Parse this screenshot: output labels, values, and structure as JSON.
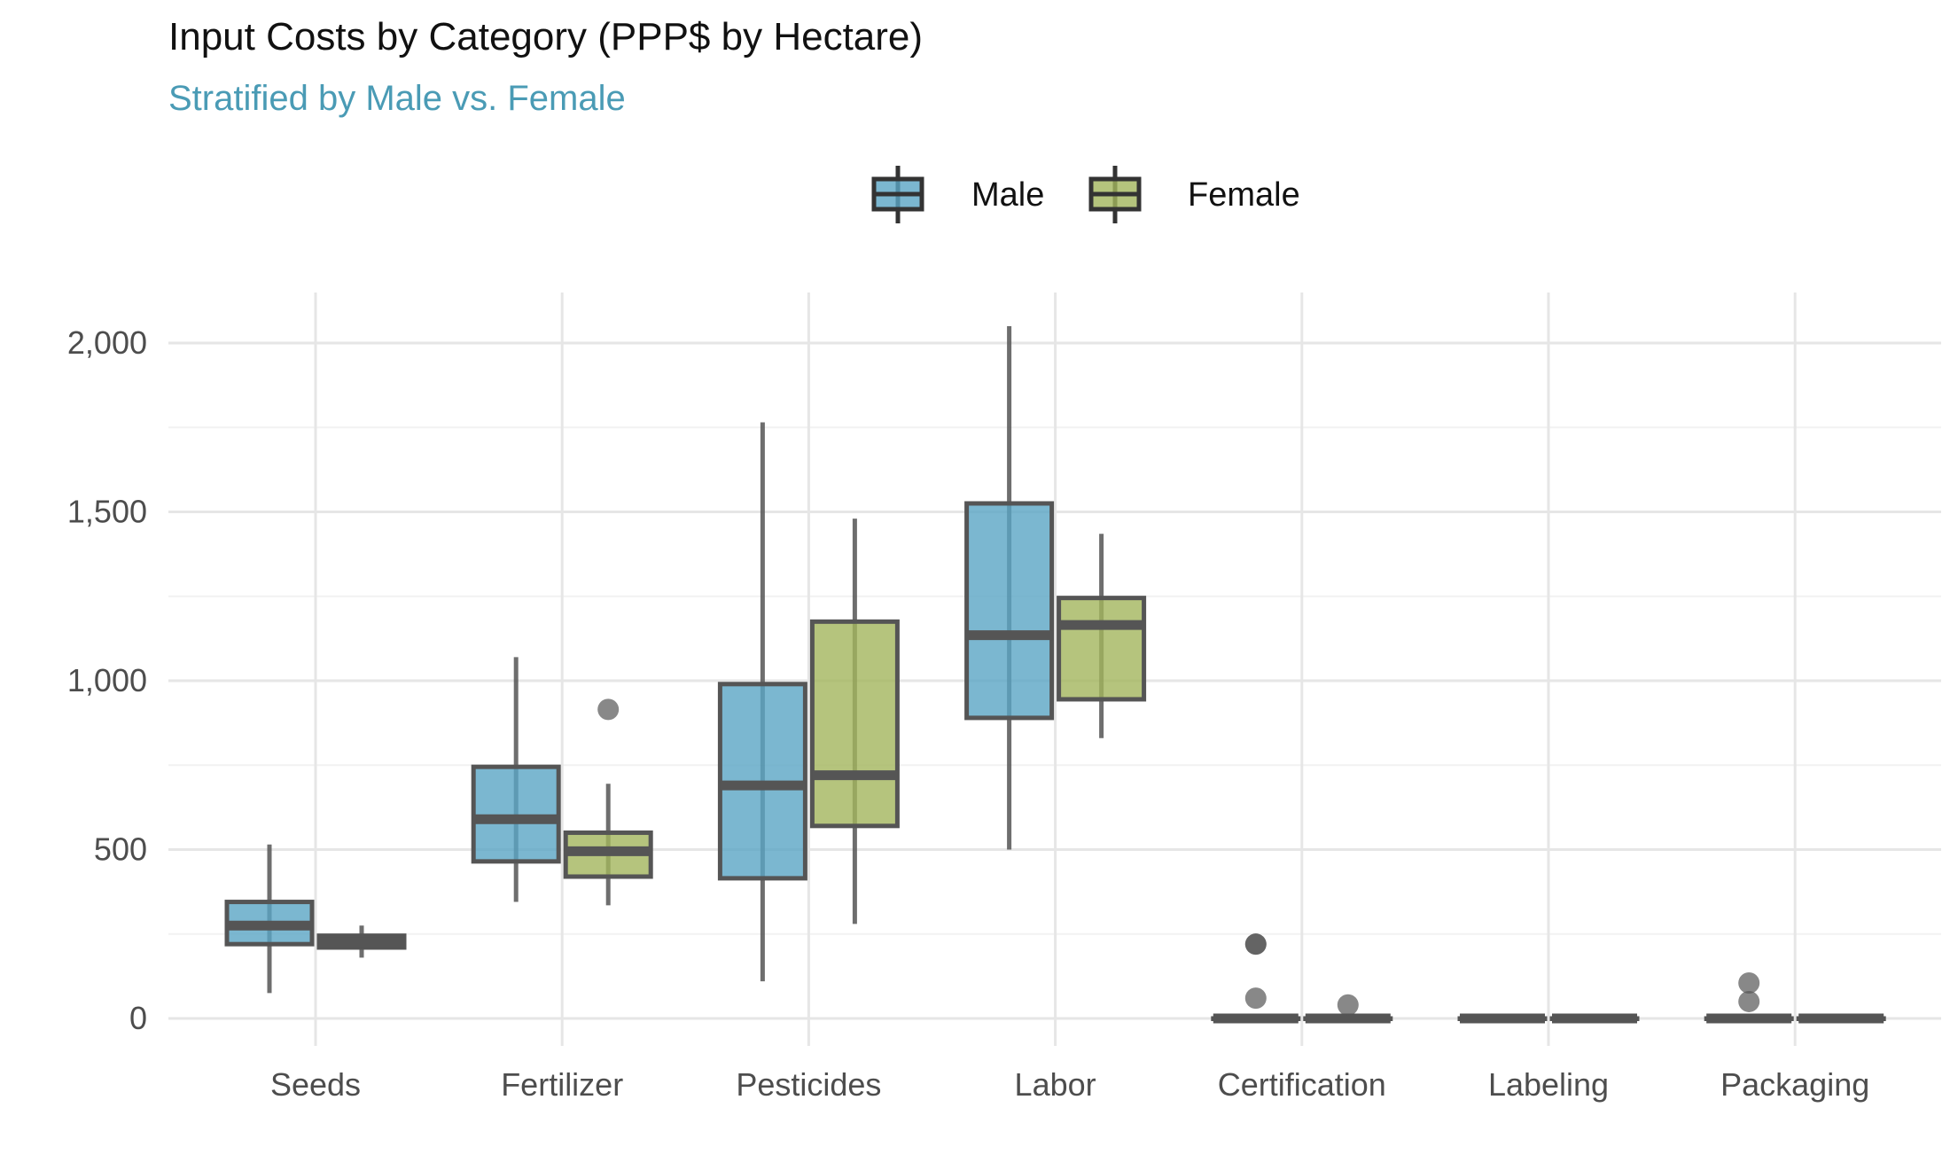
{
  "chart_data": {
    "type": "boxplot",
    "title": "Input Costs by Category (PPP$ by Hectare)",
    "subtitle": "Stratified by Male vs. Female",
    "xlabel": "",
    "ylabel": "",
    "ylim": [
      -100,
      2150
    ],
    "yticks": [
      0,
      500,
      1000,
      1500,
      2000
    ],
    "ytick_labels": [
      "0",
      "500",
      "1,000",
      "1,500",
      "2,000"
    ],
    "grid": true,
    "legend_position": "top",
    "categories": [
      "Seeds",
      "Fertilizer",
      "Pesticides",
      "Labor",
      "Certification",
      "Labeling",
      "Packaging"
    ],
    "series": [
      {
        "name": "Male",
        "color": "#5aa5c4",
        "boxes": [
          {
            "min": 75,
            "q1": 220,
            "median": 275,
            "q3": 345,
            "max": 515,
            "outliers": []
          },
          {
            "min": 345,
            "q1": 465,
            "median": 590,
            "q3": 745,
            "max": 1070,
            "outliers": []
          },
          {
            "min": 110,
            "q1": 415,
            "median": 690,
            "q3": 990,
            "max": 1765,
            "outliers": []
          },
          {
            "min": 500,
            "q1": 890,
            "median": 1135,
            "q3": 1525,
            "max": 2050,
            "outliers": []
          },
          {
            "min": 0,
            "q1": 0,
            "median": 0,
            "q3": 0,
            "max": 0,
            "outliers": [
              60,
              220,
              220
            ]
          },
          {
            "min": 0,
            "q1": 0,
            "median": 0,
            "q3": 0,
            "max": 0,
            "outliers": []
          },
          {
            "min": 0,
            "q1": 0,
            "median": 0,
            "q3": 0,
            "max": 0,
            "outliers": [
              50,
              105
            ]
          }
        ]
      },
      {
        "name": "Female",
        "color": "#a3b55c",
        "boxes": [
          {
            "min": 180,
            "q1": 210,
            "median": 225,
            "q3": 245,
            "max": 275,
            "outliers": []
          },
          {
            "min": 335,
            "q1": 420,
            "median": 495,
            "q3": 550,
            "max": 695,
            "outliers": [
              915
            ]
          },
          {
            "min": 280,
            "q1": 570,
            "median": 720,
            "q3": 1175,
            "max": 1480,
            "outliers": []
          },
          {
            "min": 830,
            "q1": 945,
            "median": 1165,
            "q3": 1245,
            "max": 1435,
            "outliers": []
          },
          {
            "min": 0,
            "q1": 0,
            "median": 0,
            "q3": 0,
            "max": 0,
            "outliers": [
              40
            ]
          },
          {
            "min": 0,
            "q1": 0,
            "median": 0,
            "q3": 0,
            "max": 0,
            "outliers": []
          },
          {
            "min": 0,
            "q1": 0,
            "median": 0,
            "q3": 0,
            "max": 0,
            "outliers": []
          }
        ]
      }
    ],
    "colors": {
      "subtitle": "#4a9bb5",
      "grid_major": "#e6e6e6",
      "grid_minor": "#f2f2f2",
      "outline": "#555555"
    }
  }
}
